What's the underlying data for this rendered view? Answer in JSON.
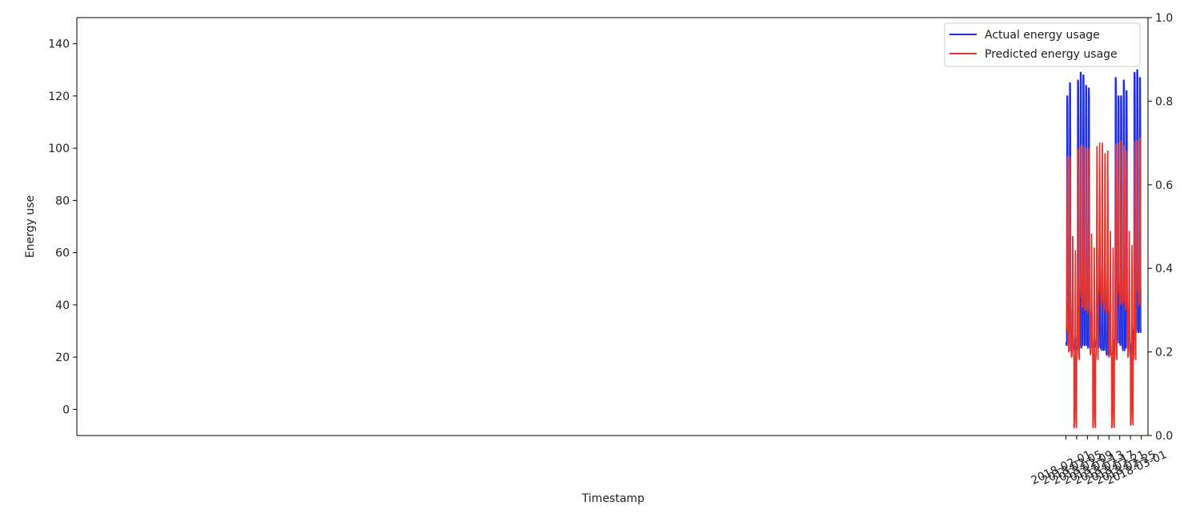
{
  "chart_data": {
    "type": "line",
    "title": "",
    "xlabel": "Timestamp",
    "ylabel": "Energy use",
    "x_start": "2018-02-01",
    "x_end": "2018-03-01",
    "xlim": [
      "2017-01-29 12:00",
      "2018-03-03 12:00"
    ],
    "ylim": [
      -10,
      150
    ],
    "y2lim": [
      0.0,
      1.0
    ],
    "xticks": [
      "2018-02-01",
      "2018-02-05",
      "2018-02-09",
      "2018-02-13",
      "2018-02-17",
      "2018-02-21",
      "2018-02-25",
      "2018-03-01"
    ],
    "yticks": [
      "0",
      "20",
      "40",
      "60",
      "80",
      "100",
      "120",
      "140"
    ],
    "y2ticks": [
      "0.0",
      "0.2",
      "0.4",
      "0.6",
      "0.8",
      "1.0"
    ],
    "legend_position": "top-right",
    "grid": false,
    "series": [
      {
        "name": "Actual energy usage",
        "color": "#1f2fe6",
        "daily_values": [
          {
            "date": "2018-02-01",
            "low": 25,
            "peak": 120
          },
          {
            "date": "2018-02-02",
            "low": 23,
            "peak": 125
          },
          {
            "date": "2018-02-03",
            "low": 25,
            "peak": 38
          },
          {
            "date": "2018-02-04",
            "low": 23,
            "peak": 28
          },
          {
            "date": "2018-02-05",
            "low": 23,
            "peak": 126
          },
          {
            "date": "2018-02-06",
            "low": 24,
            "peak": 129
          },
          {
            "date": "2018-02-07",
            "low": 25,
            "peak": 128
          },
          {
            "date": "2018-02-08",
            "low": 25,
            "peak": 124
          },
          {
            "date": "2018-02-09",
            "low": 24,
            "peak": 123
          },
          {
            "date": "2018-02-10",
            "low": 24,
            "peak": 37
          },
          {
            "date": "2018-02-11",
            "low": 24,
            "peak": 27
          },
          {
            "date": "2018-02-12",
            "low": 25,
            "peak": 47
          },
          {
            "date": "2018-02-13",
            "low": 24,
            "peak": 60
          },
          {
            "date": "2018-02-14",
            "low": 23,
            "peak": 52
          },
          {
            "date": "2018-02-15",
            "low": 23,
            "peak": 50
          },
          {
            "date": "2018-02-16",
            "low": 21,
            "peak": 46
          },
          {
            "date": "2018-02-17",
            "low": 21,
            "peak": 27
          },
          {
            "date": "2018-02-18",
            "low": 21,
            "peak": 22
          },
          {
            "date": "2018-02-19",
            "low": 26,
            "peak": 127
          },
          {
            "date": "2018-02-20",
            "low": 26,
            "peak": 120
          },
          {
            "date": "2018-02-21",
            "low": 25,
            "peak": 120
          },
          {
            "date": "2018-02-22",
            "low": 23,
            "peak": 126
          },
          {
            "date": "2018-02-23",
            "low": 24,
            "peak": 122
          },
          {
            "date": "2018-02-24",
            "low": 25,
            "peak": 38
          },
          {
            "date": "2018-02-25",
            "low": 21,
            "peak": 25
          },
          {
            "date": "2018-02-26",
            "low": 30,
            "peak": 129
          },
          {
            "date": "2018-02-27",
            "low": 30,
            "peak": 130
          },
          {
            "date": "2018-02-28",
            "low": 30,
            "peak": 127
          }
        ]
      },
      {
        "name": "Predicted energy usage",
        "color": "#e8332c",
        "daily_values": [
          {
            "date": "2018-02-01",
            "low": 30,
            "peak": 98
          },
          {
            "date": "2018-02-02",
            "low": 22,
            "peak": 98
          },
          {
            "date": "2018-02-03",
            "low": 20,
            "peak": 67
          },
          {
            "date": "2018-02-04",
            "low": -7,
            "peak": 62
          },
          {
            "date": "2018-02-05",
            "low": 19,
            "peak": 101
          },
          {
            "date": "2018-02-06",
            "low": 43,
            "peak": 102
          },
          {
            "date": "2018-02-07",
            "low": 39,
            "peak": 102
          },
          {
            "date": "2018-02-08",
            "low": 38,
            "peak": 101
          },
          {
            "date": "2018-02-09",
            "low": 37,
            "peak": 101
          },
          {
            "date": "2018-02-10",
            "low": 21,
            "peak": 68
          },
          {
            "date": "2018-02-11",
            "low": -7,
            "peak": 63
          },
          {
            "date": "2018-02-12",
            "low": 19,
            "peak": 102
          },
          {
            "date": "2018-02-13",
            "low": 44,
            "peak": 103
          },
          {
            "date": "2018-02-14",
            "low": 40,
            "peak": 103
          },
          {
            "date": "2018-02-15",
            "low": 38,
            "peak": 99
          },
          {
            "date": "2018-02-16",
            "low": 37,
            "peak": 100
          },
          {
            "date": "2018-02-17",
            "low": 20,
            "peak": 69
          },
          {
            "date": "2018-02-18",
            "low": -7,
            "peak": 63
          },
          {
            "date": "2018-02-19",
            "low": 19,
            "peak": 103
          },
          {
            "date": "2018-02-20",
            "low": 44,
            "peak": 103
          },
          {
            "date": "2018-02-21",
            "low": 40,
            "peak": 104
          },
          {
            "date": "2018-02-22",
            "low": 41,
            "peak": 102
          },
          {
            "date": "2018-02-23",
            "low": 38,
            "peak": 100
          },
          {
            "date": "2018-02-24",
            "low": 20,
            "peak": 69
          },
          {
            "date": "2018-02-25",
            "low": -6,
            "peak": 64
          },
          {
            "date": "2018-02-26",
            "low": 19,
            "peak": 104
          },
          {
            "date": "2018-02-27",
            "low": 45,
            "peak": 104
          },
          {
            "date": "2018-02-28",
            "low": 40,
            "peak": 105
          }
        ]
      }
    ]
  }
}
